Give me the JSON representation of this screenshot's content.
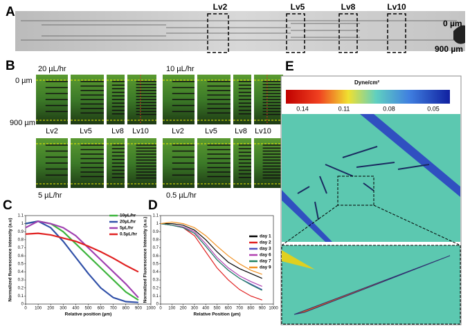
{
  "panels": {
    "a": {
      "letter": "A",
      "levels": [
        "Lv2",
        "Lv5",
        "Lv8",
        "Lv10"
      ],
      "top": "0 µm",
      "bottom": "900 µm"
    },
    "b": {
      "letter": "B",
      "rates": [
        "20 µL/hr",
        "10 µL/hr",
        "5 µL/hr",
        "0.5 µL/hr"
      ],
      "top": "0 µm",
      "bottom": "900 µm",
      "levels": [
        "Lv2",
        "Lv5",
        "Lv8",
        "Lv10"
      ]
    },
    "e": {
      "letter": "E",
      "unit": "Dyne/cm²",
      "scale_labels": [
        "0.14",
        "0.11",
        "0.08",
        "0.05"
      ]
    },
    "c": {
      "letter": "C"
    },
    "d": {
      "letter": "D"
    }
  },
  "chart_data": [
    {
      "type": "line",
      "x": [
        0,
        100,
        200,
        300,
        400,
        500,
        600,
        700,
        800,
        900
      ],
      "xlim": [
        0,
        1000
      ],
      "xticks": [
        0,
        100,
        200,
        300,
        400,
        500,
        600,
        700,
        800,
        900,
        1000
      ],
      "ylim": [
        0,
        1.1
      ],
      "yticks": [
        0,
        0.1,
        0.2,
        0.3,
        0.4,
        0.5,
        0.6,
        0.7,
        0.8,
        0.9,
        1,
        1.1
      ],
      "xlabel": "Relative position (µm)",
      "ylabel": "Normalized fluorescence intensity (a.u)",
      "series": [
        {
          "name": "10µL/hr",
          "color": "#3cb43c",
          "values": [
            1.0,
            1.03,
            1.0,
            0.9,
            0.75,
            0.6,
            0.45,
            0.3,
            0.15,
            0.05
          ]
        },
        {
          "name": "20µL/hr",
          "color": "#3050a8",
          "values": [
            1.0,
            1.03,
            0.95,
            0.78,
            0.58,
            0.38,
            0.2,
            0.08,
            0.03,
            0.02
          ]
        },
        {
          "name": "5µL/hr",
          "color": "#a040b0",
          "values": [
            0.95,
            1.03,
            1.0,
            0.95,
            0.85,
            0.7,
            0.55,
            0.4,
            0.25,
            0.08
          ]
        },
        {
          "name": "0.5µL/hr",
          "color": "#e02020",
          "values": [
            0.87,
            0.88,
            0.86,
            0.82,
            0.78,
            0.72,
            0.65,
            0.57,
            0.48,
            0.4
          ]
        }
      ]
    },
    {
      "type": "line",
      "x": [
        0,
        100,
        200,
        300,
        400,
        500,
        600,
        700,
        800,
        900
      ],
      "xlim": [
        0,
        1000
      ],
      "xticks": [
        0,
        100,
        200,
        300,
        400,
        500,
        600,
        700,
        800,
        900,
        1000
      ],
      "ylim": [
        0,
        1.1
      ],
      "yticks": [
        0,
        0.1,
        0.2,
        0.3,
        0.4,
        0.5,
        0.6,
        0.7,
        0.8,
        0.9,
        1,
        1.1
      ],
      "xlabel": "Relative Position (µm)",
      "ylabel": "Normalized Fluorescence Intensity (a.u.)",
      "series": [
        {
          "name": "day 1",
          "color": "#000000",
          "values": [
            1.0,
            1.0,
            0.98,
            0.92,
            0.8,
            0.65,
            0.52,
            0.44,
            0.38,
            0.32
          ]
        },
        {
          "name": "day 2",
          "color": "#e02020",
          "values": [
            1.0,
            0.98,
            0.95,
            0.85,
            0.65,
            0.45,
            0.3,
            0.18,
            0.1,
            0.05
          ]
        },
        {
          "name": "day 3",
          "color": "#5050c0",
          "values": [
            1.0,
            0.98,
            0.95,
            0.88,
            0.72,
            0.55,
            0.42,
            0.32,
            0.25,
            0.18
          ]
        },
        {
          "name": "day 6",
          "color": "#b040b0",
          "values": [
            1.0,
            0.98,
            0.96,
            0.9,
            0.75,
            0.58,
            0.45,
            0.35,
            0.28,
            0.22
          ]
        },
        {
          "name": "day 7",
          "color": "#208060",
          "values": [
            1.0,
            0.98,
            0.95,
            0.88,
            0.72,
            0.55,
            0.42,
            0.32,
            0.24,
            0.17
          ]
        },
        {
          "name": "day 9",
          "color": "#f09020",
          "values": [
            1.0,
            1.02,
            1.0,
            0.95,
            0.85,
            0.72,
            0.6,
            0.5,
            0.42,
            0.37
          ]
        }
      ]
    }
  ]
}
